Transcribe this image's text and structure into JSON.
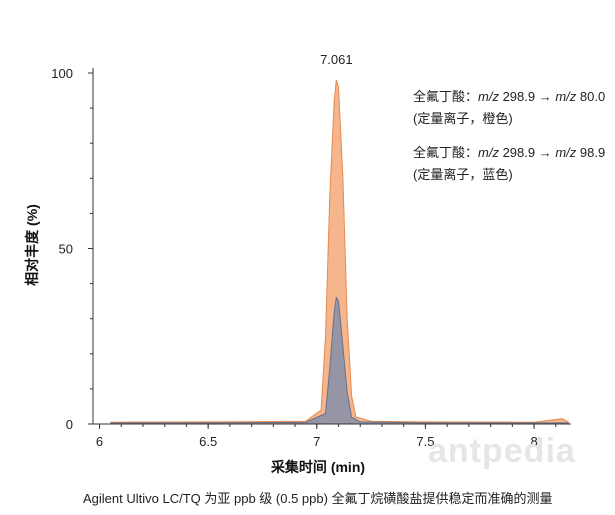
{
  "chart_data": {
    "type": "line",
    "xlabel": "采集时间 (min)",
    "ylabel": "相对丰度 (%)",
    "xlim": [
      5.97,
      8.17
    ],
    "ylim": [
      0,
      100
    ],
    "x_ticks": [
      "6",
      "6.5",
      "7",
      "7.5",
      "8"
    ],
    "y_ticks": [
      "100",
      "50",
      "0"
    ],
    "annotations": [
      {
        "text": "7.061",
        "x": 7.09,
        "y": 100
      }
    ],
    "series": [
      {
        "color": "#f3a97a",
        "x": [
          6.05,
          6.5,
          6.95,
          7.02,
          7.04,
          7.06,
          7.08,
          7.09,
          7.1,
          7.12,
          7.14,
          7.16,
          7.18,
          7.25,
          7.5,
          8.0,
          8.13,
          8.16
        ],
        "y": [
          0.5,
          0.6,
          0.8,
          4,
          25,
          65,
          92,
          98,
          96,
          70,
          30,
          8,
          2,
          0.8,
          0.6,
          0.5,
          1.5,
          0.5
        ]
      },
      {
        "color": "#8f93a6",
        "x": [
          6.05,
          6.5,
          6.95,
          7.04,
          7.06,
          7.08,
          7.09,
          7.1,
          7.12,
          7.14,
          7.16,
          7.2,
          7.5,
          8.16
        ],
        "y": [
          0.3,
          0.3,
          0.5,
          3,
          16,
          32,
          36,
          35,
          22,
          9,
          2,
          0.6,
          0.3,
          0.3
        ]
      }
    ]
  },
  "legend": {
    "entry1_prefix": "全氟丁酸：",
    "entry1_mz1": "m/z",
    "entry1_val1": " 298.9 → ",
    "entry1_mz2": "m/z",
    "entry1_val2": " 80.0",
    "entry1_note": "(定量离子，橙色)",
    "entry2_prefix": "全氟丁酸：",
    "entry2_mz1": "m/z",
    "entry2_val1": " 298.9 → ",
    "entry2_mz2": "m/z",
    "entry2_val2": " 98.9",
    "entry2_note": "(定量离子，蓝色)"
  },
  "caption": "Agilent Ultivo LC/TQ 为亚 ppb 级 (0.5 ppb) 全氟丁烷磺酸盐提供稳定而准确的测量",
  "watermark": "antpedia"
}
